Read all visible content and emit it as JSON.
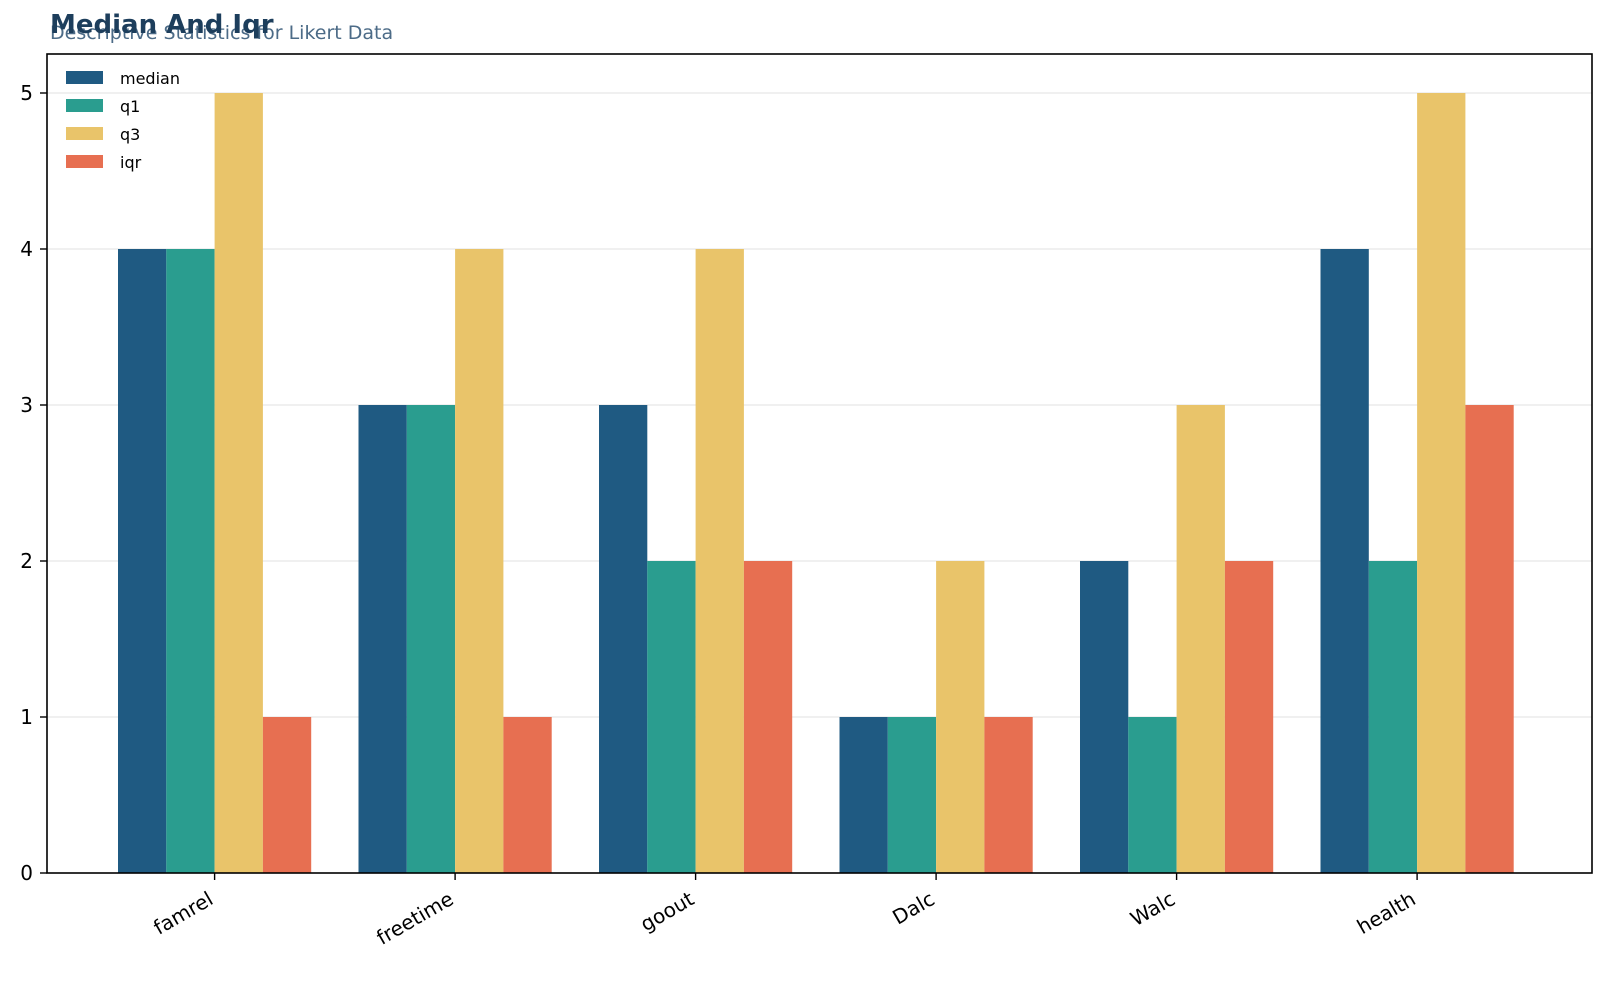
{
  "chart_data": {
    "type": "bar",
    "title": "Median And Iqr",
    "subtitle": "Descriptive Statistics for Likert Data",
    "xlabel": "",
    "ylabel": "",
    "categories": [
      "famrel",
      "freetime",
      "goout",
      "Dalc",
      "Walc",
      "health"
    ],
    "series": [
      {
        "name": "median",
        "color": "#1f5a82",
        "values": [
          4,
          3,
          3,
          1,
          2,
          4
        ]
      },
      {
        "name": "q1",
        "color": "#2a9d8f",
        "values": [
          4,
          3,
          2,
          1,
          1,
          2
        ]
      },
      {
        "name": "q3",
        "color": "#e9c46a",
        "values": [
          5,
          4,
          4,
          2,
          3,
          5
        ]
      },
      {
        "name": "iqr",
        "color": "#e76f51",
        "values": [
          1,
          1,
          2,
          1,
          2,
          3
        ]
      }
    ],
    "ylim": [
      0,
      5.25
    ],
    "yticks": [
      0,
      1,
      2,
      3,
      4,
      5
    ],
    "grid": "horizontal",
    "legend_position": "top-left"
  }
}
